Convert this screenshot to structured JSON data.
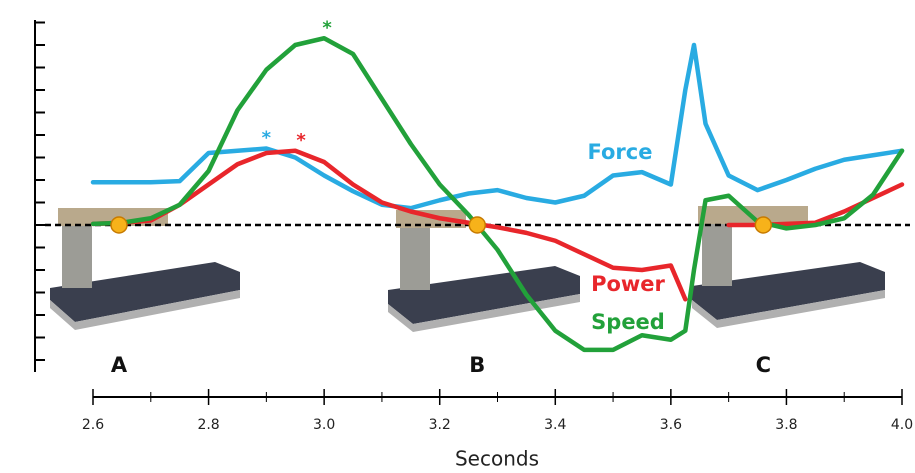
{
  "chart_data": {
    "type": "line",
    "x_label": "Seconds",
    "x": [
      2.6,
      2.65,
      2.7,
      2.75,
      2.8,
      2.85,
      2.9,
      2.95,
      3.0,
      3.05,
      3.1,
      3.15,
      3.2,
      3.25,
      3.3,
      3.35,
      3.4,
      3.45,
      3.5,
      3.55,
      3.6,
      3.625,
      3.64,
      3.66,
      3.7,
      3.75,
      3.8,
      3.85,
      3.9,
      3.95,
      4.0
    ],
    "series": [
      {
        "name": "Force",
        "color": "#29abe2",
        "values": [
          1.9,
          1.9,
          1.9,
          1.95,
          3.2,
          3.3,
          3.4,
          3.0,
          2.2,
          1.5,
          0.9,
          0.75,
          1.1,
          1.4,
          1.55,
          1.2,
          1.0,
          1.3,
          2.2,
          2.35,
          1.8,
          6.0,
          8.0,
          4.5,
          2.2,
          1.55,
          2.0,
          2.5,
          2.9,
          3.1,
          3.3
        ]
      },
      {
        "name": "Power",
        "color": "#e8262b",
        "values": [
          0.05,
          0.1,
          0.2,
          0.9,
          1.8,
          2.7,
          3.2,
          3.3,
          2.8,
          1.8,
          1.0,
          0.6,
          0.3,
          0.1,
          -0.1,
          -0.35,
          -0.7,
          -1.3,
          -1.9,
          -2.0,
          -1.8,
          -3.3,
          null,
          null,
          0,
          0,
          0.05,
          0.1,
          0.6,
          1.2,
          1.8
        ]
      },
      {
        "name": "Speed",
        "color": "#22a13a",
        "values": [
          0.05,
          0.1,
          0.3,
          0.9,
          2.4,
          5.1,
          6.9,
          8.0,
          8.3,
          7.6,
          5.6,
          3.6,
          1.8,
          0.45,
          -1.1,
          -3.1,
          -4.7,
          -5.55,
          -5.55,
          -4.9,
          -5.1,
          -4.7,
          -2.0,
          1.1,
          1.3,
          0.15,
          -0.15,
          0,
          0.3,
          1.35,
          3.3
        ]
      }
    ],
    "xlim": [
      2.6,
      4.0
    ],
    "xticks": [
      2.6,
      2.8,
      {
        "value": 3,
        "label": "3.0"
      },
      3.2,
      3.4,
      3.6,
      3.8,
      {
        "value": 4,
        "label": "4.0"
      }
    ],
    "xminorticks": [
      2.7,
      2.9,
      3.1,
      3.3,
      3.5,
      3.7,
      3.9
    ],
    "ylim": [
      -6.5,
      9
    ],
    "yticks": [
      -6,
      -5,
      -4,
      -3,
      -2,
      -1,
      0,
      1,
      2,
      3,
      4,
      5,
      6,
      7,
      8,
      9
    ],
    "zero_line": true,
    "phases": [
      {
        "label": "A",
        "x": 2.645
      },
      {
        "label": "B",
        "x": 3.265
      },
      {
        "label": "C",
        "x": 3.76
      }
    ],
    "peak_markers": [
      {
        "text": "*",
        "x": 2.9,
        "y": 3.4,
        "color": "#29abe2"
      },
      {
        "text": "*",
        "x": 2.96,
        "y": 3.3,
        "color": "#e8262b"
      },
      {
        "text": "*",
        "x": 3.005,
        "y": 8.3,
        "color": "#22a13a"
      }
    ]
  }
}
